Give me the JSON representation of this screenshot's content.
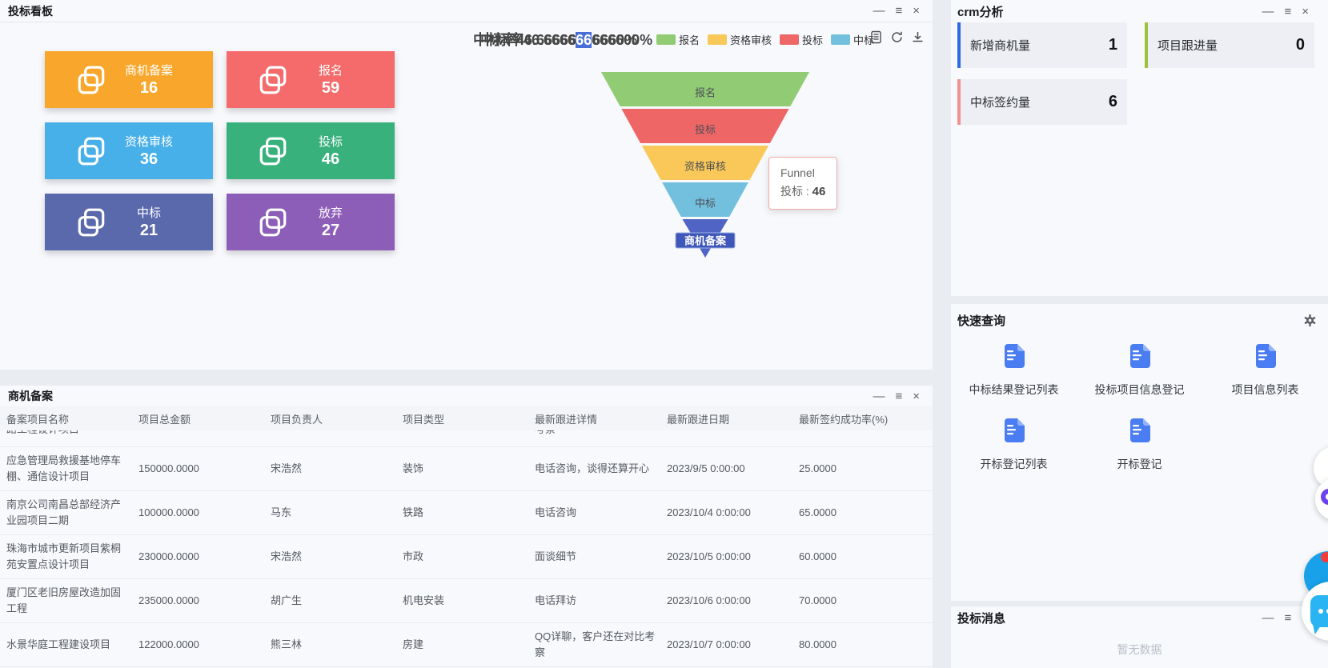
{
  "window_controls": {
    "minimize": "—",
    "menu": "≡",
    "close": "×"
  },
  "bid_board": {
    "title": "投标看板",
    "cards": [
      {
        "label": "商机备案",
        "value": "16",
        "color": "#f9a72c"
      },
      {
        "label": "报名",
        "value": "59",
        "color": "#f56a6a"
      },
      {
        "label": "资格审核",
        "value": "36",
        "color": "#47b0e8"
      },
      {
        "label": "投标",
        "value": "46",
        "color": "#38b17d"
      },
      {
        "label": "中标",
        "value": "21",
        "color": "#5a69ac"
      },
      {
        "label": "放弃",
        "value": "27",
        "color": "#8d5eb7"
      }
    ],
    "funnel": {
      "title_prefix": "中标率46.6666",
      "title_hl": "66",
      "title_suffix": "666600%",
      "title_ghost": "中标率46.66666666660%",
      "legend": [
        {
          "label": "报名",
          "color": "#91cc75"
        },
        {
          "label": "资格审核",
          "color": "#f9c858"
        },
        {
          "label": "投标",
          "color": "#ee6666"
        },
        {
          "label": "中标",
          "color": "#73c0de"
        }
      ],
      "segments": [
        {
          "label": "报名",
          "value": 59,
          "color": "#91cc75"
        },
        {
          "label": "投标",
          "value": 46,
          "color": "#ee6666"
        },
        {
          "label": "资格审核",
          "value": 36,
          "color": "#f9c858"
        },
        {
          "label": "中标",
          "value": 21,
          "color": "#73c0de"
        },
        {
          "label": "商机备案",
          "value": 16,
          "color": "#4f64c5",
          "emphasis": true
        }
      ],
      "tooltip": {
        "series": "Funnel",
        "label": "投标 :",
        "value": "46"
      }
    }
  },
  "opportunity_panel": {
    "title": "商机备案",
    "columns": [
      "备案项目名称",
      "项目总金额",
      "项目负责人",
      "项目类型",
      "最新跟进详情",
      "最新跟进日期",
      "最新签约成功率(%)"
    ],
    "clipped_row": {
      "name": "路工程设计项目",
      "detail": "考察"
    },
    "rows": [
      [
        "应急管理局救援基地停车棚、通信设计项目",
        "150000.0000",
        "宋浩然",
        "装饰",
        "电话咨询，谈得还算开心",
        "2023/9/5 0:00:00",
        "25.0000"
      ],
      [
        "南京公司南昌总部经济产业园项目二期",
        "100000.0000",
        "马东",
        "铁路",
        "电话咨询",
        "2023/10/4 0:00:00",
        "65.0000"
      ],
      [
        "珠海市城市更新项目紫桐苑安置点设计项目",
        "230000.0000",
        "宋浩然",
        "市政",
        "面谈细节",
        "2023/10/5 0:00:00",
        "60.0000"
      ],
      [
        "厦门区老旧房屋改造加固工程",
        "235000.0000",
        "胡广生",
        "机电安装",
        "电话拜访",
        "2023/10/6 0:00:00",
        "70.0000"
      ],
      [
        "水景华庭工程建设项目",
        "122000.0000",
        "熊三林",
        "房建",
        "QQ详聊，客户还在对比考察",
        "2023/10/7 0:00:00",
        "80.0000"
      ]
    ]
  },
  "crm_panel": {
    "title": "crm分析",
    "stats": [
      {
        "label": "新增商机量",
        "value": "1",
        "accent": "#2c6be4"
      },
      {
        "label": "项目跟进量",
        "value": "0",
        "accent": "#9dc23c"
      },
      {
        "label": "中标签约量",
        "value": "6",
        "accent": "#f59090"
      }
    ]
  },
  "quick_query": {
    "title": "快速查询",
    "items": [
      "中标结果登记列表",
      "投标项目信息登记",
      "项目信息列表",
      "开标登记列表",
      "开标登记"
    ]
  },
  "bid_messages": {
    "title": "投标消息",
    "empty_text": "暂无数据"
  },
  "chart_data": {
    "type": "funnel",
    "title": "中标率46.666666666600%",
    "categories": [
      "报名",
      "投标",
      "资格审核",
      "中标",
      "商机备案"
    ],
    "values": [
      59,
      46,
      36,
      21,
      16
    ],
    "colors": [
      "#91cc75",
      "#ee6666",
      "#fac858",
      "#73c0de",
      "#5470c6"
    ],
    "legend": [
      "报名",
      "资格审核",
      "投标",
      "中标"
    ],
    "legend_position": "top",
    "tooltip": {
      "series": "Funnel",
      "item": "投标",
      "value": 46
    }
  }
}
